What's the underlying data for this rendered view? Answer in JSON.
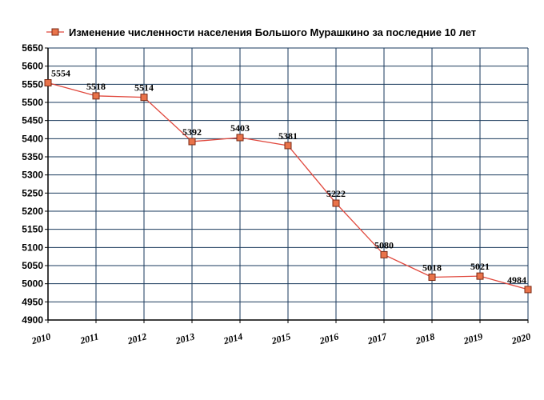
{
  "chart_data": {
    "type": "line",
    "title": "Изменение численности населения Большого Мурашкино за последние 10 лет",
    "x": [
      "2010",
      "2011",
      "2012",
      "2013",
      "2014",
      "2015",
      "2016",
      "2017",
      "2018",
      "2019",
      "2020"
    ],
    "series": [
      {
        "name": "Изменение численности населения Большого Мурашкино за последние 10 лет",
        "values": [
          5554,
          5518,
          5514,
          5392,
          5403,
          5381,
          5222,
          5080,
          5018,
          5021,
          4984
        ],
        "labels": [
          "5554",
          "5518",
          "5514",
          "5392",
          "5403",
          "5381",
          "5222",
          "5080",
          "5018",
          "5021",
          "4984"
        ]
      }
    ],
    "yticks": [
      "4900",
      "4950",
      "5000",
      "5050",
      "5100",
      "5150",
      "5200",
      "5250",
      "5300",
      "5350",
      "5400",
      "5450",
      "5500",
      "5550",
      "5600",
      "5650"
    ],
    "ylim": [
      4900,
      5650
    ],
    "grid": true,
    "legend_position": "top-left",
    "colors": {
      "line": "#e0473c",
      "marker_fill": "#e9734a",
      "marker_stroke": "#7a2a14",
      "grid": "#1a3a5c",
      "axis": "#000000"
    }
  }
}
